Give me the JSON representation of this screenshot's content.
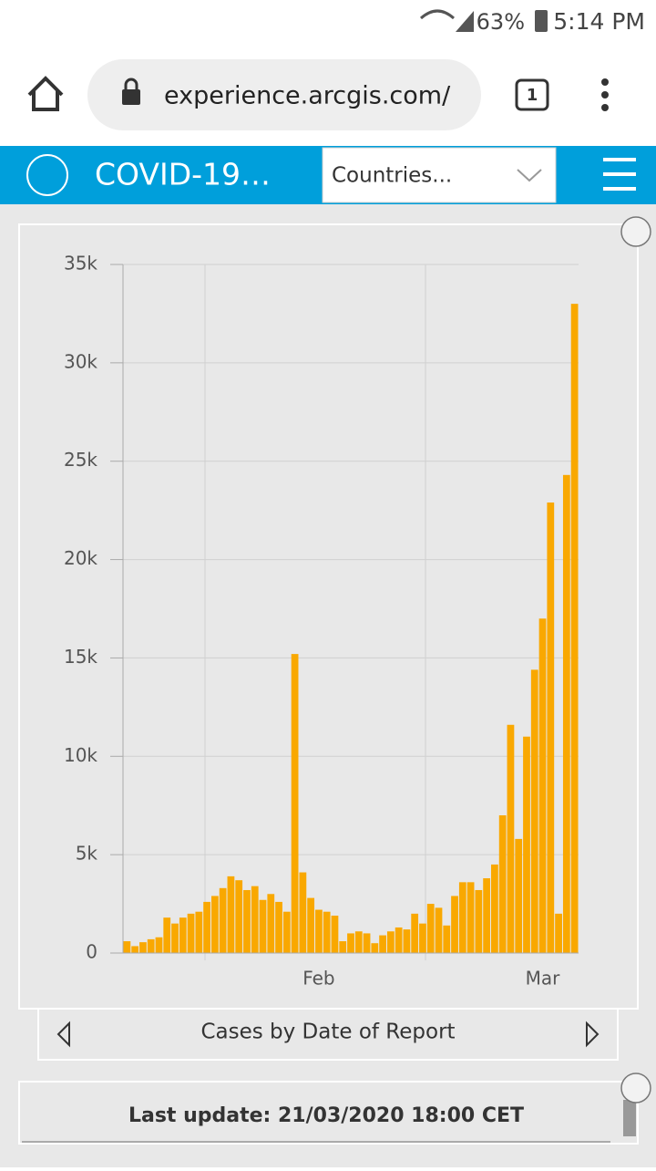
{
  "status_bar": {
    "battery": "63%",
    "time": "5:14 PM"
  },
  "browser": {
    "url": "experience.arcgis.com/",
    "tabs": "1"
  },
  "header": {
    "title": "COVID-19…",
    "dropdown": "Countries..."
  },
  "chart_data": {
    "type": "bar",
    "title": "Cases by Date of Report",
    "color": "#f9a800",
    "categories": [
      null,
      null,
      null,
      null,
      null,
      null,
      null,
      null,
      null,
      null,
      null,
      null,
      null,
      null,
      null,
      null,
      null,
      null,
      null,
      null,
      null,
      null,
      null,
      null,
      "Feb",
      null,
      null,
      null,
      null,
      null,
      null,
      null,
      null,
      null,
      null,
      null,
      null,
      null,
      null,
      null,
      null,
      null,
      null,
      null,
      null,
      null,
      null,
      null,
      null,
      null,
      null,
      null,
      "Mar",
      null,
      null,
      null,
      null
    ],
    "values": [
      600,
      350,
      550,
      700,
      800,
      1800,
      1500,
      1800,
      2000,
      2100,
      2600,
      2900,
      3300,
      3900,
      3700,
      3200,
      3400,
      2700,
      3000,
      2600,
      2100,
      15200,
      4100,
      2800,
      2200,
      2100,
      1900,
      600,
      1000,
      1100,
      1000,
      500,
      900,
      1100,
      1300,
      1200,
      2000,
      1500,
      2500,
      2300,
      1400,
      2900,
      3600,
      3600,
      3200,
      3800,
      4500,
      7000,
      11600,
      5800,
      11000,
      14400,
      17000,
      22900,
      2000,
      24300,
      33000
    ],
    "ylim": [
      0,
      35000
    ],
    "yticks": [
      0,
      {
        "value": 5000,
        "label": "5k"
      },
      {
        "value": 10000,
        "label": "10k"
      },
      {
        "value": 15000,
        "label": "15k"
      },
      {
        "value": 20000,
        "label": "20k"
      },
      {
        "value": 25000,
        "label": "25k"
      },
      {
        "value": 30000,
        "label": "30k"
      },
      {
        "value": 35000,
        "label": "35k"
      }
    ],
    "grid": true
  },
  "footer": {
    "text": "Last update: 21/03/2020 18:00 CET"
  }
}
